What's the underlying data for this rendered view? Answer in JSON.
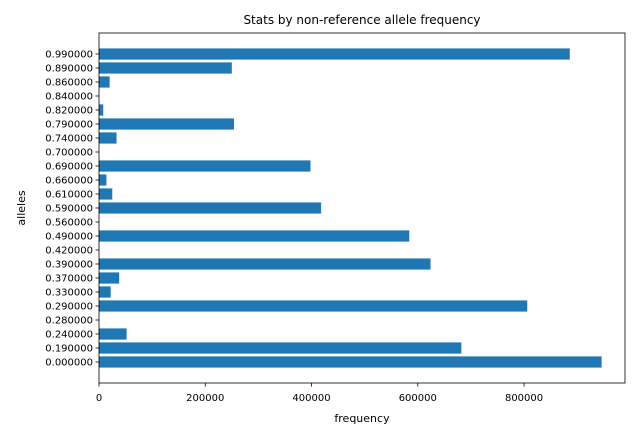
{
  "chart_data": {
    "type": "bar",
    "orientation": "horizontal",
    "title": "Stats by non-reference allele frequency",
    "xlabel": "frequency",
    "ylabel": "alleles",
    "xlim": [
      0,
      990000
    ],
    "xticks": [
      "0",
      "200000",
      "400000",
      "600000",
      "800000"
    ],
    "grid": false,
    "bar_color": "#1f77b4",
    "categories": [
      "0.000000",
      "0.190000",
      "0.240000",
      "0.280000",
      "0.290000",
      "0.330000",
      "0.370000",
      "0.390000",
      "0.420000",
      "0.490000",
      "0.560000",
      "0.590000",
      "0.610000",
      "0.660000",
      "0.690000",
      "0.700000",
      "0.740000",
      "0.790000",
      "0.820000",
      "0.840000",
      "0.860000",
      "0.890000",
      "0.990000"
    ],
    "values": [
      946000,
      682000,
      52000,
      0,
      806000,
      22000,
      38000,
      624000,
      0,
      584000,
      0,
      418000,
      25000,
      14000,
      398000,
      0,
      33000,
      254000,
      8000,
      0,
      20000,
      250000,
      886000
    ]
  }
}
